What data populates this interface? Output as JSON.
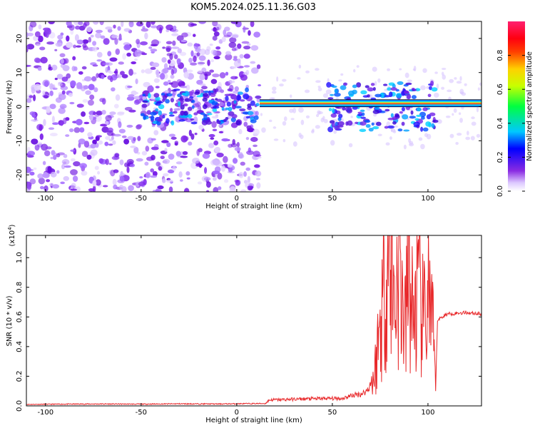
{
  "title": "KOM5.2024.025.11.36.G03",
  "colors": {
    "snr_line": "#e8282a",
    "ridge_core": "#ff2020",
    "background": "#ffffff"
  },
  "chart_data": [
    {
      "type": "heatmap",
      "title": "KOM5.2024.025.11.36.G03",
      "xlabel": "Height of straight line (km)",
      "ylabel": "Frequency (Hz)",
      "xlim": [
        -110,
        128
      ],
      "ylim": [
        -25,
        25
      ],
      "xticks": [
        -100,
        -50,
        0,
        50,
        100
      ],
      "yticks": [
        20,
        10,
        0,
        -10,
        -20
      ],
      "colorbar": {
        "label": "Normalized spectral amplitude",
        "range": [
          0,
          1
        ],
        "ticks": [
          "0.0",
          "0.2",
          "0.4",
          "0.6",
          "0.8"
        ],
        "tick_values": [
          0,
          0.2,
          0.4,
          0.6,
          0.8
        ],
        "colormap": "hsv-rainbow (violet→blue→cyan→green→yellow→red→magenta)"
      },
      "description_values": {
        "scattered_noise_region_km": [
          -110,
          12
        ],
        "signal_ridge_frequency_hz": 1,
        "signal_ridge_start_km": 12,
        "signal_ridge_amplitude_range": [
          0.6,
          0.9
        ]
      }
    },
    {
      "type": "line",
      "xlabel": "Height of straight line (km)",
      "ylabel": "SNR (10 * v/v)",
      "y_multiplier_label": "(x10",
      "y_multiplier_exp": "4",
      "xlim": [
        -110,
        128
      ],
      "ylim": [
        0,
        1.15
      ],
      "xticks": [
        -100,
        -50,
        0,
        50,
        100
      ],
      "yticks": [
        "0.0",
        "0.2",
        "0.4",
        "0.6",
        "0.8",
        "1.0"
      ],
      "ytick_values": [
        0,
        0.2,
        0.4,
        0.6,
        0.8,
        1.0
      ],
      "series": [
        {
          "x": [
            -110,
            -90,
            -70,
            -50,
            -30,
            -10,
            5,
            15,
            17,
            30,
            45,
            55,
            60,
            65,
            68,
            72,
            75,
            78,
            80,
            82,
            85,
            88,
            90,
            92,
            95,
            98,
            100,
            103,
            104,
            105,
            110,
            120,
            128
          ],
          "values": [
            0.01,
            0.012,
            0.013,
            0.012,
            0.014,
            0.013,
            0.015,
            0.016,
            0.04,
            0.045,
            0.05,
            0.05,
            0.07,
            0.08,
            0.1,
            0.2,
            0.55,
            0.9,
            1.15,
            0.7,
            0.95,
            0.5,
            0.9,
            0.6,
            0.75,
            0.55,
            0.8,
            0.4,
            0.1,
            0.58,
            0.62,
            0.63,
            0.62
          ]
        }
      ]
    }
  ]
}
